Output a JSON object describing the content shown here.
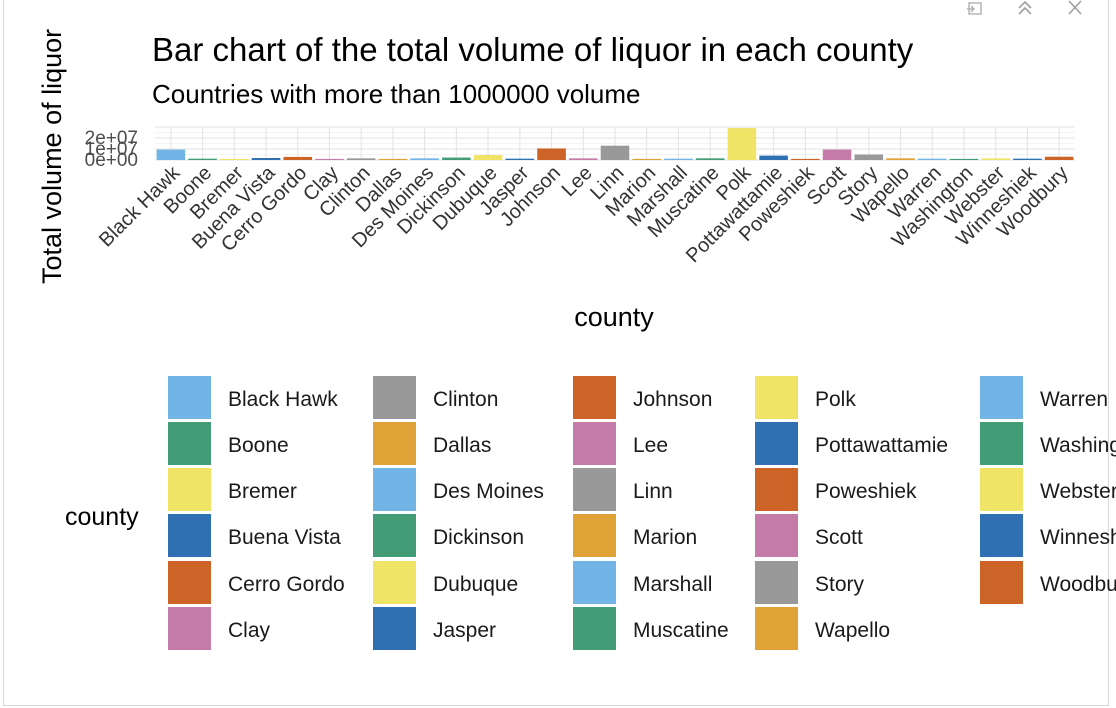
{
  "toolbar": {
    "icons": [
      "export-icon",
      "collapse-icon",
      "close-icon"
    ]
  },
  "chart_data": {
    "type": "bar",
    "title": "Bar chart of the total volume of liquor in each county",
    "subtitle": "Countries with more than 1000000 volume",
    "xlabel": "county",
    "ylabel": "Total volume of liquor",
    "y_tick_labels": [
      "0e+00",
      "1e+07",
      "2e+07"
    ],
    "ylim": [
      0,
      30000000
    ],
    "grid": true,
    "legend_title": "county",
    "legend_position": "bottom",
    "categories": [
      "Black Hawk",
      "Boone",
      "Bremer",
      "Buena Vista",
      "Cerro Gordo",
      "Clay",
      "Clinton",
      "Dallas",
      "Des Moines",
      "Dickinson",
      "Dubuque",
      "Jasper",
      "Johnson",
      "Lee",
      "Linn",
      "Marion",
      "Marshall",
      "Muscatine",
      "Polk",
      "Pottawattamie",
      "Poweshiek",
      "Scott",
      "Story",
      "Wapello",
      "Warren",
      "Washington",
      "Webster",
      "Winneshiek",
      "Woodbury"
    ],
    "values": [
      9500000,
      1200000,
      1000000,
      1800000,
      2800000,
      1000000,
      1500000,
      1000000,
      1500000,
      2200000,
      4500000,
      1200000,
      10500000,
      1500000,
      13000000,
      1000000,
      1200000,
      1500000,
      29000000,
      4000000,
      1000000,
      9500000,
      5000000,
      1500000,
      1200000,
      1000000,
      1500000,
      1200000,
      3000000
    ],
    "colors": [
      "#72b4e6",
      "#429c75",
      "#efe465",
      "#2e70b1",
      "#cc6428",
      "#c47ba8",
      "#999999",
      "#dea236",
      "#72b4e6",
      "#429c75",
      "#efe465",
      "#2e70b1",
      "#cc6428",
      "#c47ba8",
      "#999999",
      "#dea236",
      "#72b4e6",
      "#429c75",
      "#efe465",
      "#2e70b1",
      "#cc6428",
      "#c47ba8",
      "#999999",
      "#dea236",
      "#72b4e6",
      "#429c75",
      "#efe465",
      "#2e70b1",
      "#cc6428"
    ]
  }
}
